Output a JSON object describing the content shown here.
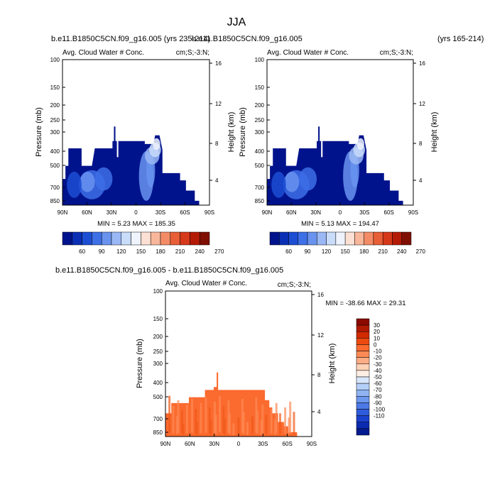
{
  "figure_title": "JJA",
  "chart_data": [
    {
      "type": "heatmap",
      "case_title": "b.e11.B1850C5CN.f09_g16.005 (yrs 235-214)",
      "left_label": "Avg. Cloud Water # Conc.",
      "right_label": "cm;S;-3:N;",
      "ylabel": "Pressure (mb)",
      "ylabel_right": "Height (km)",
      "x_ticks": [
        "90N",
        "60N",
        "30N",
        "0",
        "30S",
        "60S",
        "90S"
      ],
      "y_ticks": [
        100,
        150,
        200,
        250,
        300,
        400,
        500,
        700,
        850
      ],
      "height_ticks": [
        4,
        8,
        12,
        16
      ],
      "min_max": "MIN =   5.23   MAX = 185.35",
      "min": 5.23,
      "max": 185.35,
      "colorbar_labels": [
        "60",
        "90",
        "120",
        "150",
        "180",
        "210",
        "240",
        "270"
      ],
      "colors": [
        "#00138c",
        "#0a2fb4",
        "#1c4ed3",
        "#3d6fe6",
        "#6993ee",
        "#9ab8f5",
        "#c9dcfa",
        "#eef3fd",
        "#fbe0d3",
        "#f8b79b",
        "#f38c66",
        "#e85e36",
        "#d6381a",
        "#b41b06",
        "#7f0f03"
      ]
    },
    {
      "type": "heatmap",
      "case_title": "b.e11.B1850C5CN.f09_g16.005",
      "case_title_suffix": "(yrs 165-214)",
      "left_label": "Avg. Cloud Water # Conc.",
      "right_label": "cm;S;-3:N;",
      "ylabel": "Pressure (mb)",
      "ylabel_right": "Height (km)",
      "x_ticks": [
        "90N",
        "60N",
        "30N",
        "0",
        "30S",
        "60S",
        "90S"
      ],
      "y_ticks": [
        100,
        150,
        200,
        250,
        300,
        400,
        500,
        700,
        850
      ],
      "height_ticks": [
        4,
        8,
        12,
        16
      ],
      "min_max": "MIN =   5.13   MAX = 194.47",
      "min": 5.13,
      "max": 194.47,
      "colorbar_labels": [
        "60",
        "90",
        "120",
        "150",
        "180",
        "210",
        "240",
        "270"
      ],
      "colors": [
        "#00138c",
        "#0a2fb4",
        "#1c4ed3",
        "#3d6fe6",
        "#6993ee",
        "#9ab8f5",
        "#c9dcfa",
        "#eef3fd",
        "#fbe0d3",
        "#f8b79b",
        "#f38c66",
        "#e85e36",
        "#d6381a",
        "#b41b06",
        "#7f0f03"
      ]
    },
    {
      "type": "heatmap",
      "case_title": "b.e11.B1850C5CN.f09_g16.005 - b.e11.B1850C5CN.f09_g16.005",
      "left_label": "Avg. Cloud Water # Conc.",
      "right_label": "cm;S;-3:N;",
      "ylabel": "Pressure (mb)",
      "ylabel_right": "Height (km)",
      "x_ticks": [
        "90N",
        "60N",
        "30N",
        "0",
        "30S",
        "60S",
        "90S"
      ],
      "y_ticks": [
        100,
        150,
        200,
        250,
        300,
        400,
        500,
        700,
        850
      ],
      "height_ticks": [
        4,
        8,
        12,
        16
      ],
      "min_max": "MIN = -38.66   MAX =  29.31",
      "min": -38.66,
      "max": 29.31,
      "colorbar_labels": [
        "30",
        "20",
        "10",
        "0",
        "-10",
        "-20",
        "-30",
        "-40",
        "-50",
        "-60",
        "-70",
        "-80",
        "-90",
        "-100",
        "-110"
      ],
      "colors": [
        "#8b0a00",
        "#b01a00",
        "#d12a00",
        "#ed4a10",
        "#fa6a2e",
        "#fb8a55",
        "#fcad85",
        "#fdd2b6",
        "#fdeee4",
        "#d6e6fb",
        "#b4cff8",
        "#90b4f3",
        "#6e98ee",
        "#4c79e6",
        "#2f5cdc",
        "#1a41cc",
        "#0a2bb0",
        "#031b8e"
      ]
    }
  ]
}
